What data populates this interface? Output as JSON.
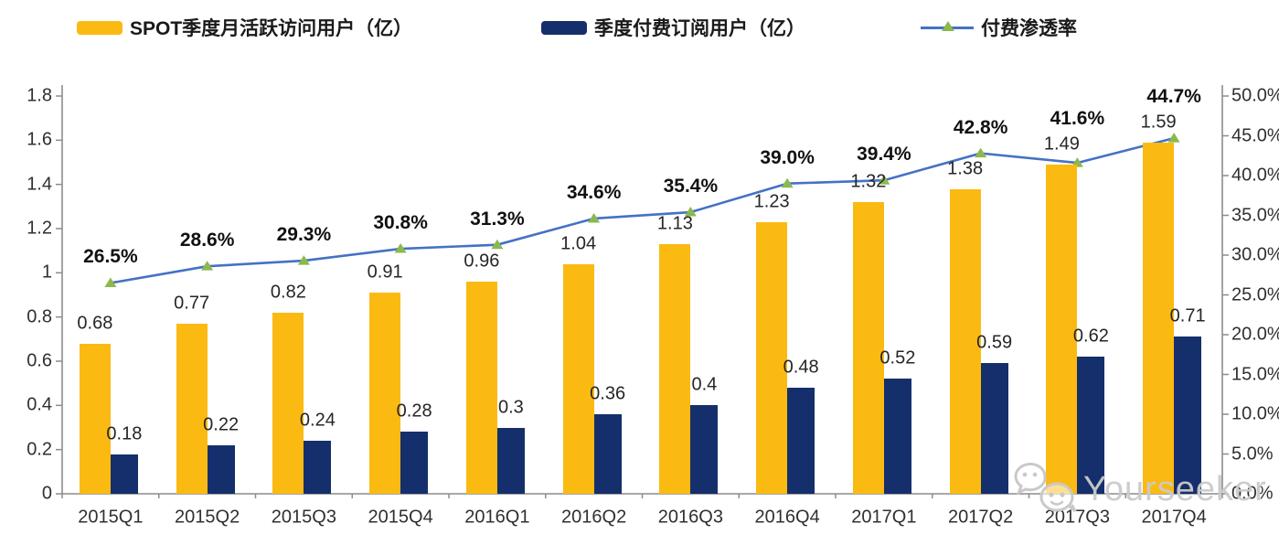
{
  "legend": {
    "items": [
      {
        "label": "SPOT季度月活跃访问用户（亿）",
        "swatch": "yellow-bar"
      },
      {
        "label": "季度付费订阅用户（亿）",
        "swatch": "navy-bar"
      },
      {
        "label": "付费渗透率",
        "swatch": "line-marker"
      }
    ]
  },
  "colors": {
    "mau_bar": "#FBBA12",
    "subs_bar": "#142F6B",
    "line": "#4472C4",
    "marker": "#8CB84E",
    "axis": "#8C8C8C"
  },
  "chart_data": {
    "type": "combo-bar-line",
    "title": "",
    "categories": [
      "2015Q1",
      "2015Q2",
      "2015Q3",
      "2015Q4",
      "2016Q1",
      "2016Q2",
      "2016Q3",
      "2016Q4",
      "2017Q1",
      "2017Q2",
      "2017Q3",
      "2017Q4"
    ],
    "series": [
      {
        "name": "SPOT季度月活跃访问用户（亿）",
        "type": "bar",
        "axis": "left",
        "values": [
          0.68,
          0.77,
          0.82,
          0.91,
          0.96,
          1.04,
          1.13,
          1.23,
          1.32,
          1.38,
          1.49,
          1.59
        ],
        "labels": [
          "0.68",
          "0.77",
          "0.82",
          "0.91",
          "0.96",
          "1.04",
          "1.13",
          "1.23",
          "1.32",
          "1.38",
          "1.49",
          "1.59"
        ]
      },
      {
        "name": "季度付费订阅用户（亿）",
        "type": "bar",
        "axis": "left",
        "values": [
          0.18,
          0.22,
          0.24,
          0.28,
          0.3,
          0.36,
          0.4,
          0.48,
          0.52,
          0.59,
          0.62,
          0.71
        ],
        "labels": [
          "0.18",
          "0.22",
          "0.24",
          "0.28",
          "0.3",
          "0.36",
          "0.4",
          "0.48",
          "0.52",
          "0.59",
          "0.62",
          "0.71"
        ]
      },
      {
        "name": "付费渗透率",
        "type": "line",
        "axis": "right",
        "values": [
          26.5,
          28.6,
          29.3,
          30.8,
          31.3,
          34.6,
          35.4,
          39.0,
          39.4,
          42.8,
          41.6,
          44.7
        ],
        "labels": [
          "26.5%",
          "28.6%",
          "29.3%",
          "30.8%",
          "31.3%",
          "34.6%",
          "35.4%",
          "39.0%",
          "39.4%",
          "42.8%",
          "41.6%",
          "44.7%"
        ]
      }
    ],
    "left_axis": {
      "min": 0,
      "max": 1.8,
      "tick_labels": [
        "0",
        "0.2",
        "0.4",
        "0.6",
        "0.8",
        "1",
        "1.2",
        "1.4",
        "1.6",
        "1.8"
      ]
    },
    "right_axis": {
      "min": 0,
      "max": 50,
      "tick_labels": [
        "0.0%",
        "5.0%",
        "10.0%",
        "15.0%",
        "20.0%",
        "25.0%",
        "30.0%",
        "35.0%",
        "40.0%",
        "45.0%",
        "50.0%"
      ]
    },
    "grid": false,
    "legend_position": "top"
  },
  "watermark": {
    "text": "Yourseeker",
    "icon": "wechat-icon"
  }
}
